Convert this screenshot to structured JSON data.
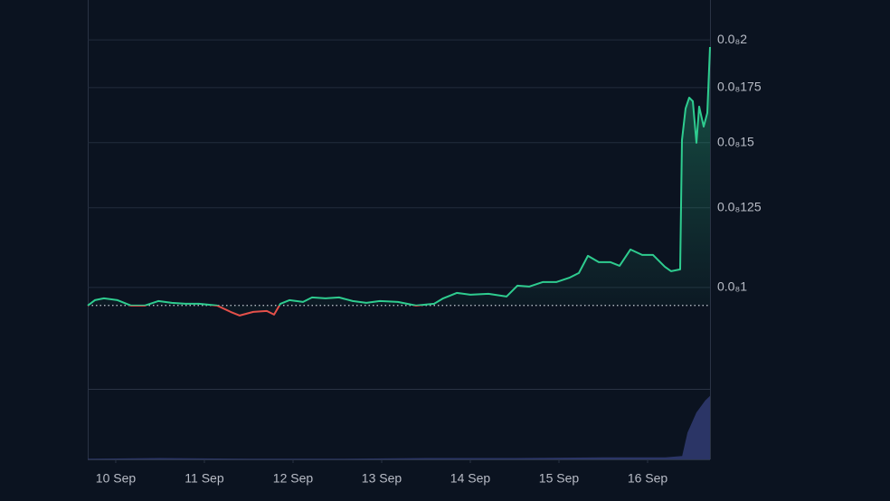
{
  "chart_data": {
    "type": "line",
    "log_scale": true,
    "grid": true,
    "xlim": [
      9.684,
      16.704
    ],
    "xticks": [
      {
        "value": 10,
        "label": "10 Sep"
      },
      {
        "value": 11,
        "label": "11 Sep"
      },
      {
        "value": 12,
        "label": "12 Sep"
      },
      {
        "value": 13,
        "label": "13 Sep"
      },
      {
        "value": 14,
        "label": "14 Sep"
      },
      {
        "value": 15,
        "label": "15 Sep"
      },
      {
        "value": 16,
        "label": "16 Sep"
      }
    ],
    "ylim": [
      7.53e-10,
      2.236e-09
    ],
    "yticks": [
      {
        "value": 1e-09,
        "label": "0.0₈1"
      },
      {
        "value": 1.25e-09,
        "label": "0.0₈125"
      },
      {
        "value": 1.5e-09,
        "label": "0.0₈15"
      },
      {
        "value": 1.75e-09,
        "label": "0.0₈175"
      },
      {
        "value": 2e-09,
        "label": "0.0₈2"
      }
    ],
    "baseline": 9.51e-10,
    "up_color": "#2ecc8f",
    "down_color": "#e5504a",
    "series": [
      {
        "x": [
          9.684,
          9.765,
          9.867,
          10.02,
          10.173,
          10.327,
          10.48,
          10.633,
          10.786,
          10.939,
          11.143,
          11.296,
          11.398,
          11.551,
          11.704,
          11.786,
          11.857,
          11.959,
          12.112,
          12.214,
          12.367,
          12.52,
          12.673,
          12.827,
          12.98,
          13.184,
          13.388,
          13.592,
          13.694,
          13.847,
          14.0,
          14.204,
          14.408,
          14.531,
          14.663,
          14.816,
          14.969,
          15.122,
          15.224,
          15.327,
          15.449,
          15.582,
          15.684,
          15.806,
          15.939,
          16.061,
          16.194,
          16.265,
          16.367,
          16.388,
          16.429,
          16.469,
          16.51,
          16.551,
          16.582,
          16.633,
          16.673,
          16.704
        ],
        "values": [
          9.507e-10,
          9.652e-10,
          9.701e-10,
          9.652e-10,
          9.507e-10,
          9.507e-10,
          9.628e-10,
          9.579e-10,
          9.555e-10,
          9.555e-10,
          9.507e-10,
          9.34e-10,
          9.245e-10,
          9.34e-10,
          9.364e-10,
          9.269e-10,
          9.555e-10,
          9.652e-10,
          9.603e-10,
          9.725e-10,
          9.701e-10,
          9.725e-10,
          9.628e-10,
          9.579e-10,
          9.628e-10,
          9.603e-10,
          9.507e-10,
          9.555e-10,
          9.701e-10,
          9.849e-10,
          9.8e-10,
          9.824e-10,
          9.75e-10,
          1.0051e-09,
          1.0025e-09,
          1.0153e-09,
          1.0153e-09,
          1.0282e-09,
          1.0413e-09,
          1.0926e-09,
          1.0734e-09,
          1.0734e-09,
          1.0626e-09,
          1.1121e-09,
          1.0954e-09,
          1.0954e-09,
          1.0599e-09,
          1.0466e-09,
          1.0519e-09,
          1.5107e-09,
          1.6506e-09,
          1.7013e-09,
          1.6842e-09,
          1.4993e-09,
          1.659e-09,
          1.569e-09,
          1.6299e-09,
          1.9603e-09
        ]
      }
    ],
    "volume": {
      "color": "#2b3566",
      "ylim": [
        0,
        100
      ],
      "x": [
        9.684,
        10.5,
        11.5,
        12.5,
        13.5,
        14.5,
        15.5,
        16.2,
        16.39,
        16.45,
        16.55,
        16.65,
        16.704
      ],
      "values": [
        1,
        2,
        1,
        1,
        2,
        2,
        3,
        3,
        5,
        40,
        70,
        88,
        95
      ]
    }
  }
}
